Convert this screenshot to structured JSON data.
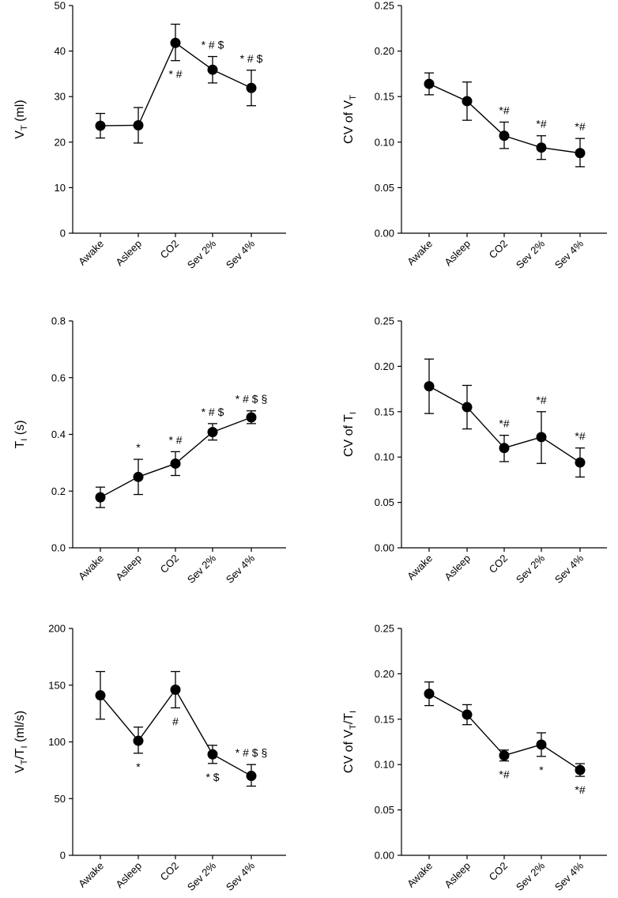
{
  "chart_data": [
    {
      "id": "vt",
      "type": "line",
      "ylabel": "V_T (ml)",
      "categories": [
        "Awake",
        "Asleep",
        "CO2",
        "Sev 2%",
        "Sev 4%"
      ],
      "ylim": [
        0,
        50
      ],
      "yticks": [
        "0",
        "10",
        "20",
        "30",
        "40",
        "50"
      ],
      "yticks_values": [
        0,
        10,
        20,
        30,
        40,
        50
      ],
      "values": [
        23.6,
        23.7,
        41.8,
        35.9,
        31.9
      ],
      "err_low": [
        20.9,
        19.8,
        37.9,
        33.0,
        28.0
      ],
      "err_high": [
        26.3,
        27.6,
        45.9,
        38.8,
        35.8
      ],
      "annotations": [
        {
          "cat": 2,
          "text": "* #",
          "pos": "below"
        },
        {
          "cat": 3,
          "text": "* # $",
          "pos": "above"
        },
        {
          "cat": 4,
          "text": "* # $",
          "pos": "above"
        }
      ]
    },
    {
      "id": "cv_vt",
      "type": "line",
      "ylabel": "CV of V_T",
      "categories": [
        "Awake",
        "Asleep",
        "CO2",
        "Sev 2%",
        "Sev 4%"
      ],
      "ylim": [
        0,
        0.25
      ],
      "yticks": [
        "0.00",
        "0.05",
        "0.10",
        "0.15",
        "0.20",
        "0.25"
      ],
      "yticks_values": [
        0,
        0.05,
        0.1,
        0.15,
        0.2,
        0.25
      ],
      "values": [
        0.164,
        0.145,
        0.107,
        0.094,
        0.088
      ],
      "err_low": [
        0.152,
        0.124,
        0.093,
        0.081,
        0.073
      ],
      "err_high": [
        0.176,
        0.166,
        0.122,
        0.107,
        0.104
      ],
      "annotations": [
        {
          "cat": 2,
          "text": "*#",
          "pos": "above"
        },
        {
          "cat": 3,
          "text": "*#",
          "pos": "above"
        },
        {
          "cat": 4,
          "text": "*#",
          "pos": "above"
        }
      ]
    },
    {
      "id": "ti",
      "type": "line",
      "ylabel": "T_I (s)",
      "categories": [
        "Awake",
        "Asleep",
        "CO2",
        "Sev 2%",
        "Sev 4%"
      ],
      "ylim": [
        0,
        0.8
      ],
      "yticks": [
        "0.0",
        "0.2",
        "0.4",
        "0.6",
        "0.8"
      ],
      "yticks_values": [
        0,
        0.2,
        0.4,
        0.6,
        0.8
      ],
      "values": [
        0.178,
        0.25,
        0.297,
        0.408,
        0.46
      ],
      "err_low": [
        0.142,
        0.188,
        0.255,
        0.38,
        0.438
      ],
      "err_high": [
        0.214,
        0.312,
        0.339,
        0.438,
        0.483
      ],
      "annotations": [
        {
          "cat": 1,
          "text": "*",
          "pos": "above"
        },
        {
          "cat": 2,
          "text": "* #",
          "pos": "above"
        },
        {
          "cat": 3,
          "text": "* # $",
          "pos": "above"
        },
        {
          "cat": 4,
          "text": "* # $ §",
          "pos": "above"
        }
      ]
    },
    {
      "id": "cv_ti",
      "type": "line",
      "ylabel": "CV of T_I",
      "categories": [
        "Awake",
        "Asleep",
        "CO2",
        "Sev 2%",
        "Sev 4%"
      ],
      "ylim": [
        0,
        0.25
      ],
      "yticks": [
        "0.00",
        "0.05",
        "0.10",
        "0.15",
        "0.20",
        "0.25"
      ],
      "yticks_values": [
        0,
        0.05,
        0.1,
        0.15,
        0.2,
        0.25
      ],
      "values": [
        0.178,
        0.155,
        0.11,
        0.122,
        0.094
      ],
      "err_low": [
        0.148,
        0.131,
        0.095,
        0.093,
        0.078
      ],
      "err_high": [
        0.208,
        0.179,
        0.124,
        0.15,
        0.11
      ],
      "annotations": [
        {
          "cat": 2,
          "text": "*#",
          "pos": "above"
        },
        {
          "cat": 3,
          "text": "*#",
          "pos": "above"
        },
        {
          "cat": 4,
          "text": "*#",
          "pos": "above"
        }
      ]
    },
    {
      "id": "vt_ti",
      "type": "line",
      "ylabel": "V_T/T_I (ml/s)",
      "categories": [
        "Awake",
        "Asleep",
        "CO2",
        "Sev 2%",
        "Sev 4%"
      ],
      "ylim": [
        0,
        200
      ],
      "yticks": [
        "0",
        "50",
        "100",
        "150",
        "200"
      ],
      "yticks_values": [
        0,
        50,
        100,
        150,
        200
      ],
      "values": [
        141,
        101,
        146,
        89,
        70
      ],
      "err_low": [
        120,
        90,
        130,
        81,
        61
      ],
      "err_high": [
        162,
        113,
        162,
        97,
        80
      ],
      "annotations": [
        {
          "cat": 1,
          "text": "*",
          "pos": "below"
        },
        {
          "cat": 2,
          "text": "#",
          "pos": "below"
        },
        {
          "cat": 3,
          "text": "* $",
          "pos": "below"
        },
        {
          "cat": 4,
          "text": "* # $ §",
          "pos": "above"
        }
      ]
    },
    {
      "id": "cv_vt_ti",
      "type": "line",
      "ylabel": "CV of V_T/T_I",
      "categories": [
        "Awake",
        "Asleep",
        "CO2",
        "Sev 2%",
        "Sev 4%"
      ],
      "ylim": [
        0,
        0.25
      ],
      "yticks": [
        "0.00",
        "0.05",
        "0.10",
        "0.15",
        "0.20",
        "0.25"
      ],
      "yticks_values": [
        0,
        0.05,
        0.1,
        0.15,
        0.2,
        0.25
      ],
      "values": [
        0.178,
        0.155,
        0.11,
        0.122,
        0.094
      ],
      "err_low": [
        0.165,
        0.144,
        0.104,
        0.109,
        0.087
      ],
      "err_high": [
        0.191,
        0.166,
        0.116,
        0.135,
        0.101
      ],
      "annotations": [
        {
          "cat": 2,
          "text": "*#",
          "pos": "below"
        },
        {
          "cat": 3,
          "text": "*",
          "pos": "below"
        },
        {
          "cat": 4,
          "text": "*#",
          "pos": "below"
        }
      ]
    }
  ]
}
